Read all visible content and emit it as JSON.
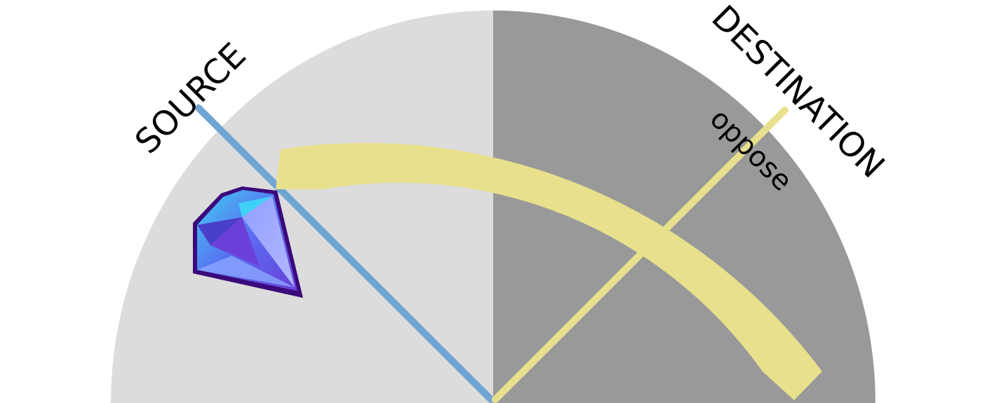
{
  "diagram": {
    "labels": {
      "source": "SOURCE",
      "destination": "DESTINATION",
      "relation": "oppose"
    },
    "colors": {
      "source_half": "#dcdcdc",
      "destination_half": "#999999",
      "source_ray": "#6fa5d2",
      "destination_ray": "#e8e08c",
      "arrow": "#e8e08c",
      "gem_outline": "#3a0a7a",
      "gem_fill": "#5a6cf0",
      "gem_highlight": "#3fd0f5"
    },
    "icons": {
      "source_marker": "gem-icon"
    }
  }
}
